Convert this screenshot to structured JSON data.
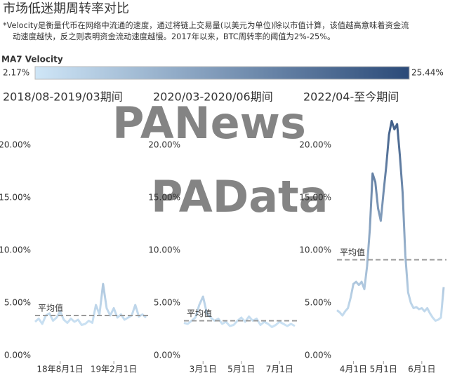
{
  "title": "市场低迷期周转率对比",
  "subtitle_lines": [
    "*Velocity是衡量代币在网络中流通的速度，通过将链上交易量(以美元为单位)除以市值计算，该值越高意味着资金流",
    "动速度越快，反之则表明资金流动速度越慢。2017年以来，BTC周转率的阈值为2%-25%。"
  ],
  "watermarks": [
    "PANews",
    "PAData"
  ],
  "legend": {
    "title": "MA7 Velocity",
    "min": {
      "value": 2.17,
      "label": "2.17%"
    },
    "max": {
      "value": 25.44,
      "label": "25.44%"
    },
    "colors": [
      "#cfe6f7",
      "#2b4a78"
    ]
  },
  "chart_data": [
    {
      "type": "line",
      "title": "2018/08-2019/03期间",
      "categories": [
        null,
        null,
        null,
        null,
        null,
        null,
        null,
        "18年8月1日",
        null,
        null,
        null,
        null,
        null,
        null,
        null,
        null,
        null,
        null,
        null,
        null,
        null,
        null,
        "19年2月1日",
        null,
        null,
        null,
        null,
        null,
        null,
        null,
        null,
        null
      ],
      "values": [
        3.2,
        3.5,
        3.0,
        3.8,
        4.0,
        3.3,
        3.6,
        4.2,
        3.4,
        3.1,
        3.5,
        3.2,
        3.4,
        2.9,
        3.0,
        3.3,
        3.1,
        4.8,
        3.9,
        6.8,
        4.5,
        3.8,
        4.5,
        3.6,
        3.9,
        3.4,
        3.6,
        3.8,
        4.8,
        3.7,
        3.9,
        3.6
      ],
      "average": 3.8,
      "average_label": "平均值",
      "ylim": [
        0,
        23
      ],
      "yticks": [
        {
          "value": 0,
          "label": "0.00%"
        },
        {
          "value": 5,
          "label": "5.00%"
        },
        {
          "value": 10,
          "label": "10.00%"
        },
        {
          "value": 15,
          "label": "15.00%"
        },
        {
          "value": 20,
          "label": "20.00%"
        }
      ]
    },
    {
      "type": "line",
      "title": "2020/03-2020/06期间",
      "categories": [
        null,
        null,
        null,
        null,
        null,
        "3月1日",
        null,
        null,
        null,
        null,
        null,
        null,
        null,
        null,
        null,
        "5月1日",
        null,
        null,
        null,
        null,
        null,
        null,
        null,
        null,
        null,
        "7月1日",
        null,
        null,
        null,
        null
      ],
      "values": [
        3.1,
        3.0,
        3.3,
        3.6,
        4.8,
        5.6,
        4.0,
        3.6,
        3.3,
        3.5,
        3.0,
        3.2,
        2.8,
        2.9,
        3.3,
        3.6,
        3.2,
        3.7,
        3.3,
        3.5,
        2.9,
        3.2,
        3.0,
        2.7,
        2.9,
        3.2,
        3.0,
        2.8,
        3.0,
        2.8
      ],
      "average": 3.3,
      "average_label": "平均值",
      "ylim": [
        0,
        23
      ],
      "yticks": [
        {
          "value": 0,
          "label": "0.00%"
        },
        {
          "value": 5,
          "label": "5.00%"
        },
        {
          "value": 10,
          "label": "10.00%"
        },
        {
          "value": 15,
          "label": "15.00%"
        },
        {
          "value": 20,
          "label": "20.00%"
        }
      ]
    },
    {
      "type": "line",
      "title": "2022/04-至今期间",
      "categories": [
        null,
        null,
        null,
        null,
        null,
        null,
        "4月1日",
        null,
        null,
        null,
        null,
        null,
        null,
        null,
        null,
        null,
        null,
        "5月1日",
        null,
        null,
        null,
        null,
        null,
        null,
        null,
        null,
        null,
        null,
        null,
        null,
        null,
        "6月1日",
        null,
        null,
        null,
        null,
        null,
        null,
        null,
        null
      ],
      "values": [
        4.3,
        4.1,
        3.8,
        4.2,
        4.5,
        5.5,
        6.8,
        7.0,
        6.7,
        7.0,
        6.3,
        8.5,
        12.0,
        17.3,
        16.5,
        14.0,
        12.8,
        15.5,
        18.0,
        21.0,
        22.3,
        21.5,
        22.0,
        19.0,
        15.5,
        9.5,
        6.0,
        5.0,
        4.5,
        4.6,
        4.4,
        4.5,
        4.2,
        4.5,
        4.0,
        3.6,
        3.3,
        3.4,
        3.6,
        6.5
      ],
      "average": 9.1,
      "average_label": "平均值",
      "ylim": [
        0,
        23
      ],
      "yticks": [
        {
          "value": 0,
          "label": "0.00%"
        },
        {
          "value": 5,
          "label": "5.00%"
        },
        {
          "value": 10,
          "label": "10.00%"
        },
        {
          "value": 15,
          "label": "15.00%"
        },
        {
          "value": 20,
          "label": "20.00%"
        }
      ]
    }
  ]
}
